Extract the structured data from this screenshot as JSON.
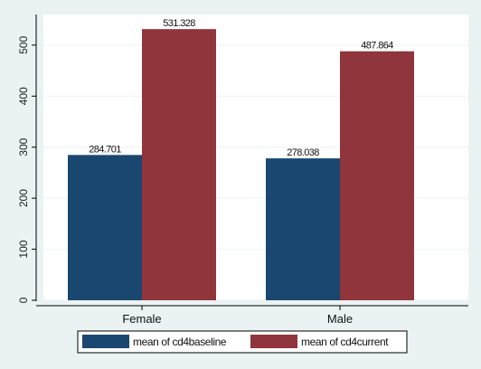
{
  "chart_data": {
    "type": "bar",
    "categories": [
      "Female",
      "Male"
    ],
    "series": [
      {
        "name": "mean of cd4baseline",
        "values": [
          284.701,
          278.038
        ],
        "labels": [
          "284.701",
          "278.038"
        ],
        "color": "#1a476f"
      },
      {
        "name": "mean of cd4current",
        "values": [
          531.328,
          487.864
        ],
        "labels": [
          "531.328",
          "487.864"
        ],
        "color": "#90353b"
      }
    ],
    "yticks": [
      0,
      100,
      200,
      300,
      400,
      500
    ],
    "ylim": [
      0,
      560
    ],
    "grid": true,
    "legend_position": "bottom",
    "background": "#eaf2f3",
    "plot_background": "#ffffff",
    "title": "",
    "xlabel": "",
    "ylabel": ""
  }
}
